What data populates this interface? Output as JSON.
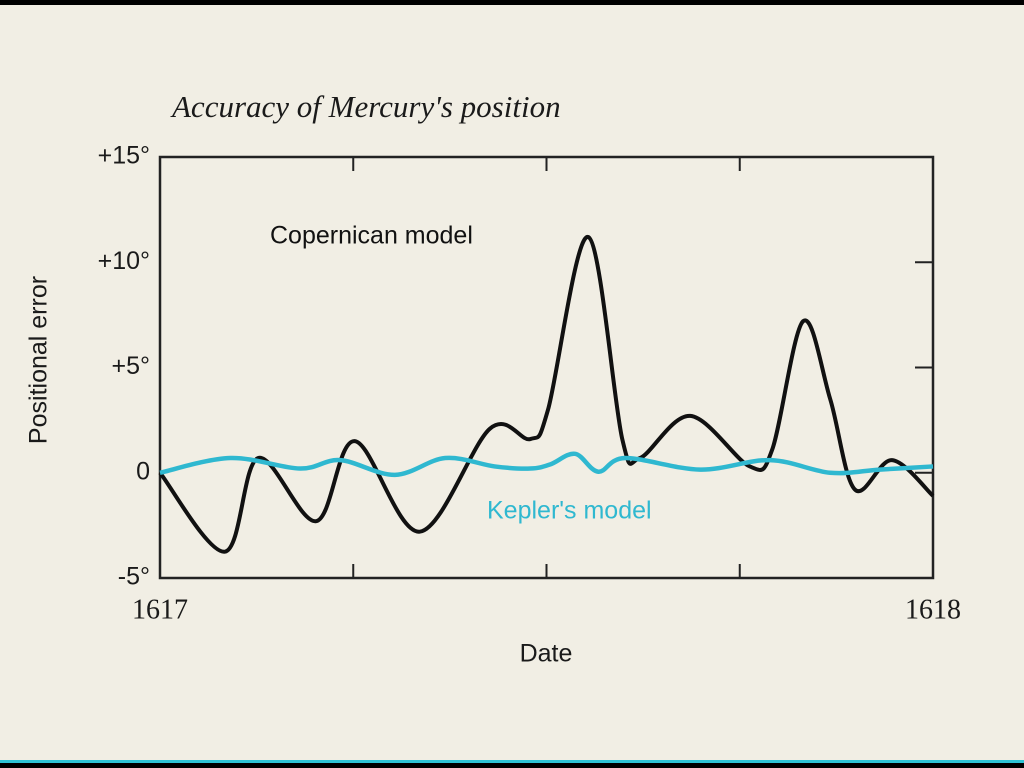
{
  "chart_data": {
    "type": "line",
    "title": "Accuracy of Mercury's position",
    "x_label": "Date",
    "y_label": "Positional error",
    "xlim": [
      1617,
      1618
    ],
    "xticks": [
      1617,
      1618
    ],
    "ylim": [
      -5,
      15
    ],
    "yticks": [
      {
        "value": 15,
        "label": "+15°"
      },
      {
        "value": 10,
        "label": "+10°"
      },
      {
        "value": 5,
        "label": "+5°"
      },
      0,
      {
        "value": -5,
        "label": "-5°"
      }
    ],
    "series": [
      {
        "name": "Copernican model",
        "color": "#111111",
        "x": [
          1617.0,
          1617.084,
          1617.127,
          1617.202,
          1617.252,
          1617.336,
          1617.427,
          1617.479,
          1617.502,
          1617.554,
          1617.598,
          1617.621,
          1617.686,
          1617.763,
          1617.792,
          1617.832,
          1617.867,
          1617.899,
          1617.947,
          1618.0
        ],
        "values": [
          0,
          -3.75,
          0.7,
          -2.3,
          1.5,
          -2.8,
          2.1,
          1.6,
          3.0,
          11.2,
          1.6,
          0.7,
          2.7,
          0.3,
          1.1,
          7.2,
          3.5,
          -0.8,
          0.6,
          -1.1
        ]
      },
      {
        "name": "Kepler's model",
        "color": "#2fb8d0",
        "x": [
          1617.0,
          1617.091,
          1617.181,
          1617.233,
          1617.304,
          1617.369,
          1617.433,
          1617.479,
          1617.505,
          1617.537,
          1617.567,
          1617.602,
          1617.699,
          1617.789,
          1617.867,
          1617.931,
          1618.0
        ],
        "values": [
          0,
          0.7,
          0.2,
          0.6,
          -0.1,
          0.7,
          0.3,
          0.2,
          0.4,
          0.9,
          0.05,
          0.7,
          0.15,
          0.6,
          0,
          0.15,
          0.3
        ]
      }
    ]
  }
}
